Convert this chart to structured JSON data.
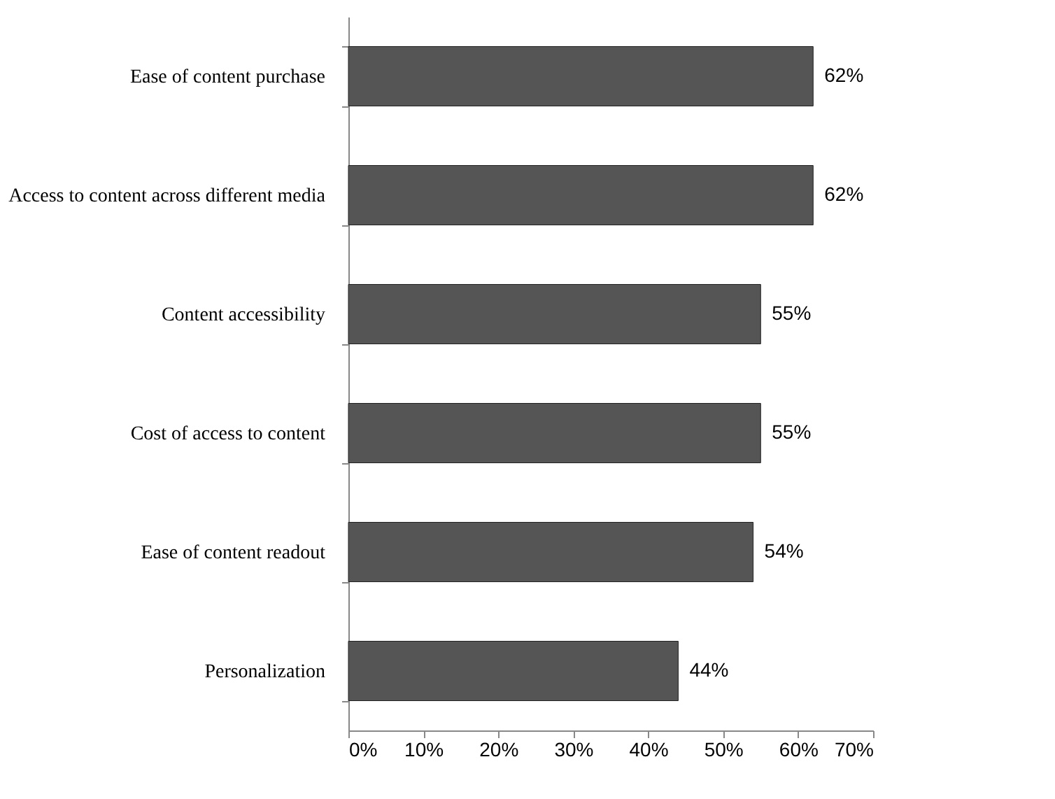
{
  "chart_data": {
    "type": "bar",
    "orientation": "horizontal",
    "categories": [
      "Ease of content purchase",
      "Access to content across different media",
      "Content accessibility",
      "Cost of access to content",
      "Ease of content readout",
      "Personalization"
    ],
    "values": [
      62,
      62,
      55,
      55,
      54,
      44
    ],
    "value_labels": [
      "62%",
      "62%",
      "55%",
      "55%",
      "54%",
      "44%"
    ],
    "color": "#555555",
    "xlim": [
      0,
      70
    ],
    "xticks": [
      {
        "value": 0,
        "label": "0%"
      },
      {
        "value": 10,
        "label": "10%"
      },
      {
        "value": 20,
        "label": "20%"
      },
      {
        "value": 30,
        "label": "30%"
      },
      {
        "value": 40,
        "label": "40%"
      },
      {
        "value": 50,
        "label": "50%"
      },
      {
        "value": 60,
        "label": "60%"
      },
      {
        "value": 70,
        "label": "70%"
      }
    ],
    "grid": false
  }
}
